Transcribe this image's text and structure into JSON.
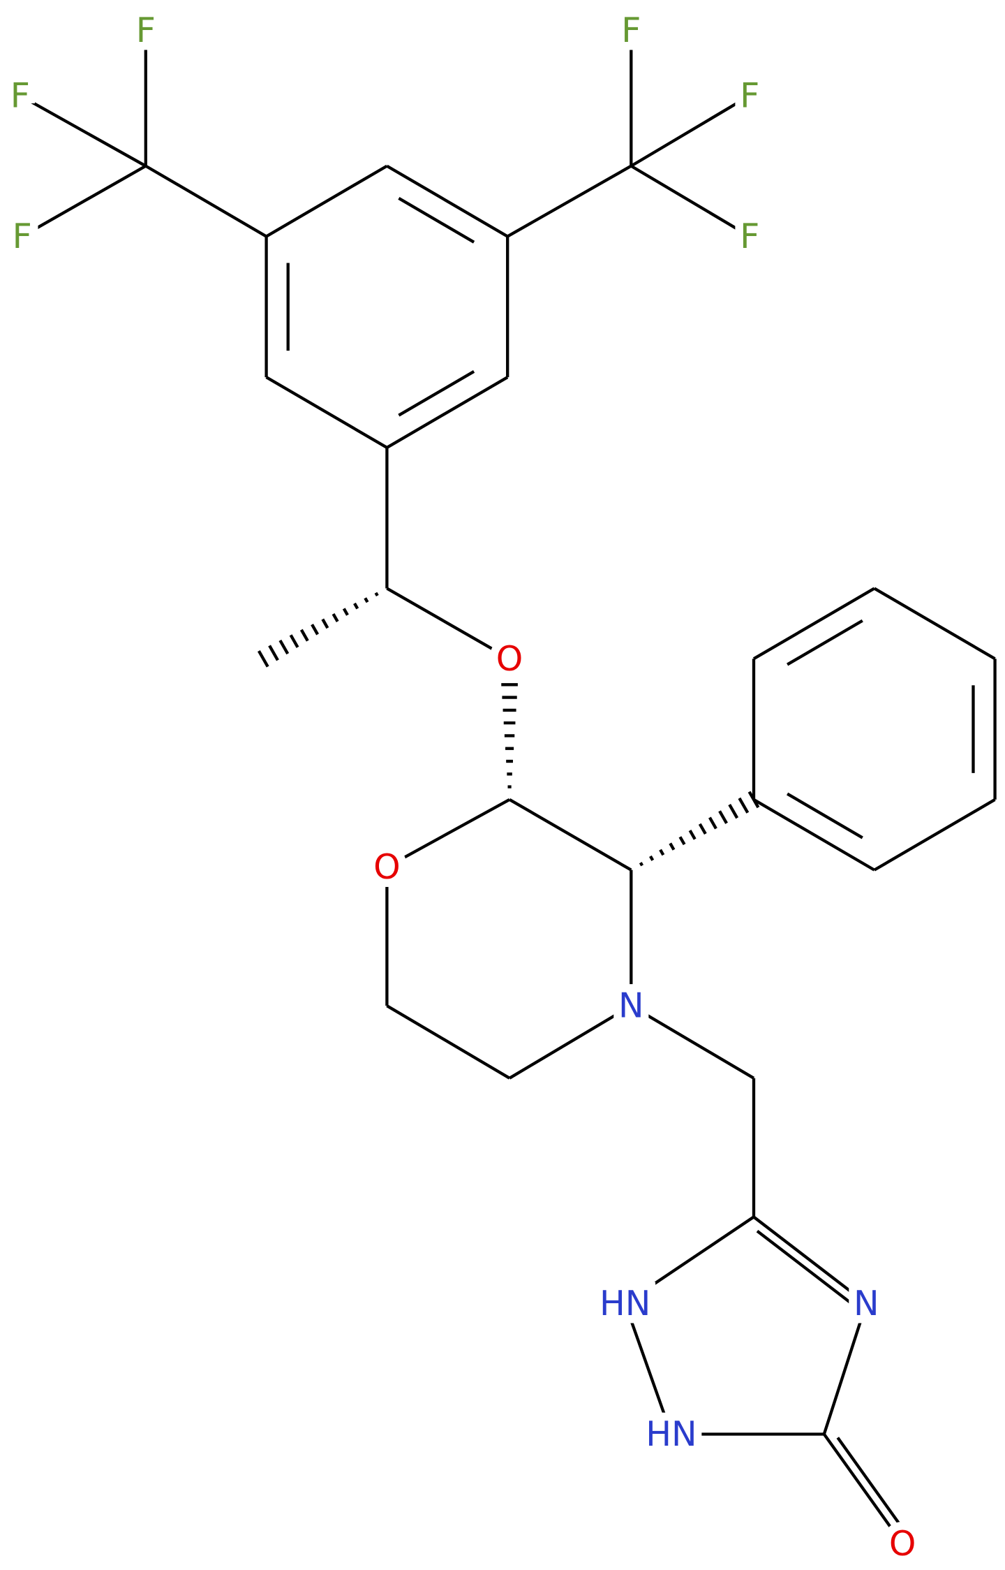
{
  "atom_labels": [
    "F",
    "F",
    "F",
    "F",
    "F",
    "F",
    "O",
    "O",
    "N",
    "HN",
    "N",
    "HN",
    "O"
  ]
}
